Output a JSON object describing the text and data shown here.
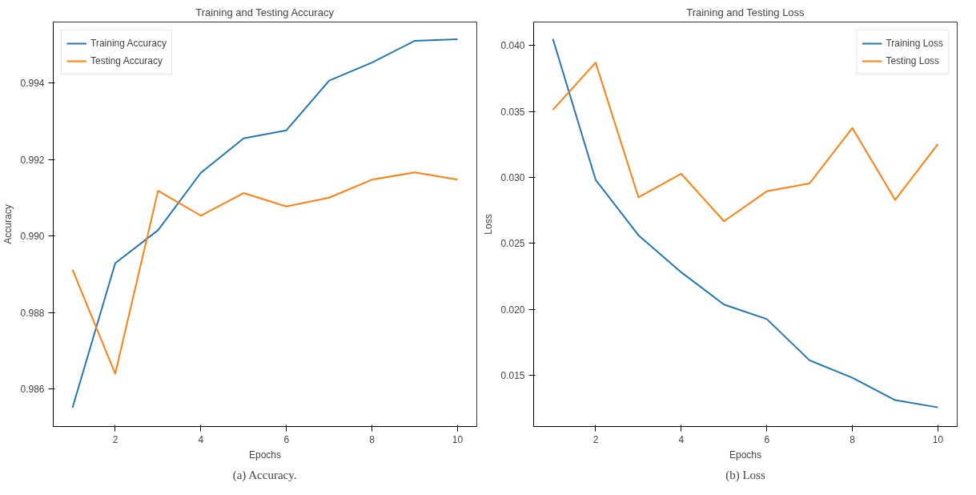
{
  "chart_data": [
    {
      "type": "line",
      "title": "Training and Testing Accuracy",
      "xlabel": "Epochs",
      "ylabel": "Accuracy",
      "x": [
        1,
        2,
        3,
        4,
        5,
        6,
        7,
        8,
        9,
        10
      ],
      "series": [
        {
          "name": "Training Accuracy",
          "color": "#1f77b4",
          "values": [
            0.98551,
            0.98929,
            0.99015,
            0.99165,
            0.99255,
            0.99276,
            0.99406,
            0.99453,
            0.9951,
            0.99514
          ]
        },
        {
          "name": "Testing Accuracy",
          "color": "#ff7f0e",
          "values": [
            0.98912,
            0.9864,
            0.99118,
            0.99053,
            0.99112,
            0.99077,
            0.991,
            0.99147,
            0.99166,
            0.99147
          ]
        }
      ],
      "xlim": [
        0.55,
        10.45
      ],
      "xticks": [
        2,
        4,
        6,
        8,
        10
      ],
      "ylim": [
        0.98502,
        0.99559
      ],
      "yticks": [
        {
          "value": 0.986,
          "label": "0.986"
        },
        {
          "value": 0.988,
          "label": "0.988"
        },
        {
          "value": 0.99,
          "label": "0.990"
        },
        {
          "value": 0.992,
          "label": "0.992"
        },
        {
          "value": 0.994,
          "label": "0.994"
        }
      ],
      "grid": false,
      "legend": "top left",
      "marker": "none",
      "line_style": "solid",
      "annotations": [
        "(a) Accuracy."
      ]
    },
    {
      "type": "line",
      "title": "Training and Testing Loss",
      "xlabel": "Epochs",
      "ylabel": "Loss",
      "x": [
        1,
        2,
        3,
        4,
        5,
        6,
        7,
        8,
        9,
        10
      ],
      "series": [
        {
          "name": "Training Loss",
          "color": "#1f77b4",
          "values": [
            0.0405,
            0.02981,
            0.02561,
            0.0228,
            0.02035,
            0.01925,
            0.01612,
            0.0148,
            0.0131,
            0.01255
          ]
        },
        {
          "name": "Testing Loss",
          "color": "#ff7f0e",
          "values": [
            0.03512,
            0.0387,
            0.02849,
            0.03027,
            0.02667,
            0.02894,
            0.02954,
            0.03374,
            0.02829,
            0.03252
          ]
        }
      ],
      "xlim": [
        0.55,
        10.45
      ],
      "xticks": [
        2,
        4,
        6,
        8,
        10
      ],
      "ylim": [
        0.0111,
        0.04178
      ],
      "yticks": [
        {
          "value": 0.015,
          "label": "0.015"
        },
        {
          "value": 0.02,
          "label": "0.020"
        },
        {
          "value": 0.025,
          "label": "0.025"
        },
        {
          "value": 0.03,
          "label": "0.030"
        },
        {
          "value": 0.035,
          "label": "0.035"
        },
        {
          "value": 0.04,
          "label": "0.040"
        }
      ],
      "grid": false,
      "legend": "top right",
      "marker": "none",
      "line_style": "solid",
      "annotations": [
        "(b) Loss"
      ]
    }
  ]
}
